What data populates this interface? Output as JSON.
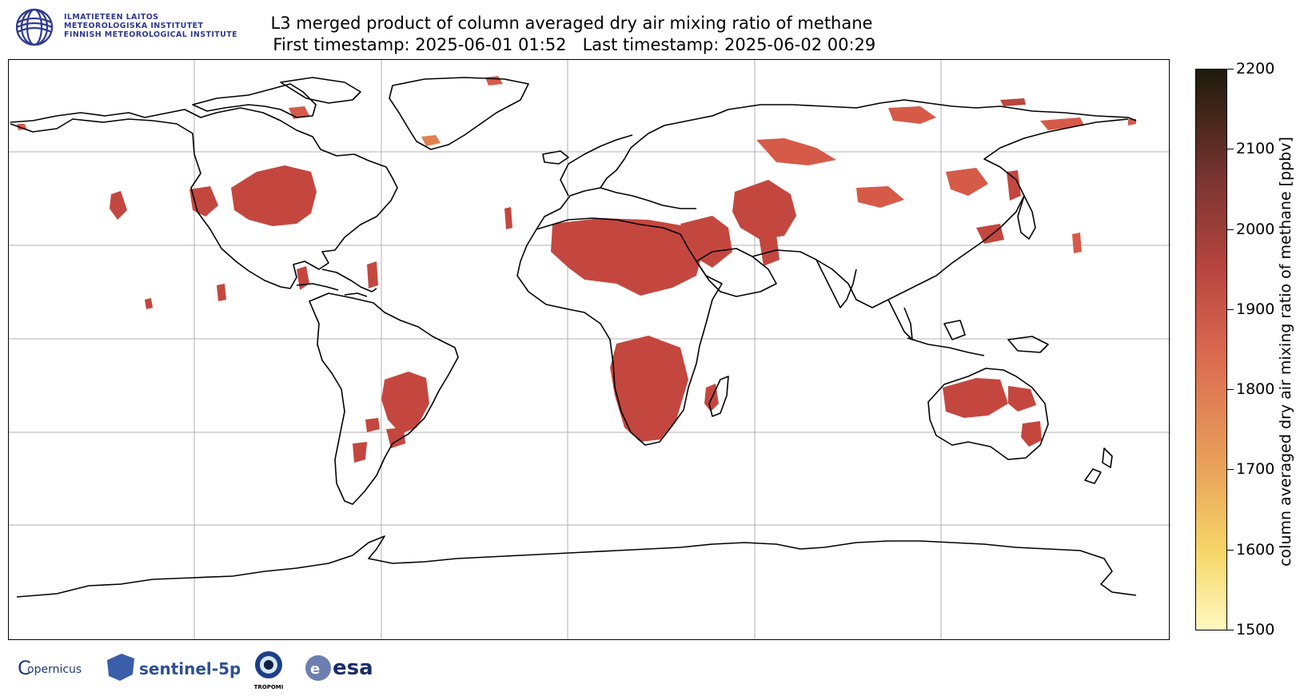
{
  "institute": {
    "name_line1": "ILMATIETEEN LAITOS",
    "name_line2": "METEOROLOGISKA INSTITUTET",
    "name_line3": "FINNISH METEOROLOGICAL INSTITUTE"
  },
  "title": {
    "line1": "L3 merged product of column averaged dry air mixing ratio of methane",
    "line2": " First timestamp: 2025-06-01 01:52   Last timestamp: 2025-06-02 00:29"
  },
  "colorbar": {
    "label": "column averaged dry air mixing ratio of methane [ppbv]",
    "ticks": [
      "2200",
      "2100",
      "2000",
      "1900",
      "1800",
      "1700",
      "1600",
      "1500"
    ],
    "min": 1500,
    "max": 2200,
    "colors": [
      "#fff9c0",
      "#f6d668",
      "#eaa55a",
      "#d9674f",
      "#b9463f",
      "#7c3531",
      "#43261a",
      "#1e1a0b"
    ]
  },
  "map": {
    "projection": "PlateCarree",
    "gridlines": true,
    "lon_range": [
      -180,
      180
    ],
    "lat_range": [
      -90,
      90
    ],
    "data_color": "#c4473f"
  },
  "logos": {
    "copernicus": "opernicus",
    "copernicus_c": "C",
    "sentinel": "sentinel-5p",
    "tropomi": "TROPOMI",
    "esa": "esa"
  }
}
